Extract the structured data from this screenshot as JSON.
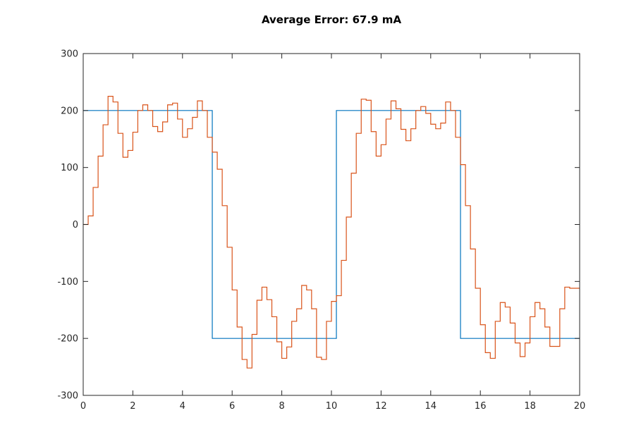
{
  "chart_data": {
    "type": "line",
    "step": true,
    "title": "Average Error:  67.9 mA",
    "xlabel": "",
    "ylabel": "",
    "xlim": [
      0,
      20
    ],
    "ylim": [
      -300,
      300
    ],
    "xticks": [
      0,
      2,
      4,
      6,
      8,
      10,
      12,
      14,
      16,
      18,
      20
    ],
    "yticks": [
      -300,
      -200,
      -100,
      0,
      100,
      200,
      300
    ],
    "grid": false,
    "box": true,
    "series": [
      {
        "color": "#0072BD",
        "x": [
          0,
          5.2,
          5.2,
          10.2,
          10.2,
          15.2,
          15.2,
          20
        ],
        "y": [
          200,
          200,
          -200,
          -200,
          200,
          200,
          -200,
          -200
        ]
      },
      {
        "color": "#D95319",
        "x": [
          0,
          0.2,
          0.4,
          0.6,
          0.8,
          1.0,
          1.2,
          1.4,
          1.6,
          1.8,
          2.0,
          2.2,
          2.4,
          2.6,
          2.8,
          3.0,
          3.2,
          3.4,
          3.6,
          3.8,
          4.0,
          4.2,
          4.4,
          4.6,
          4.8,
          5.0,
          5.2,
          5.4,
          5.6,
          5.8,
          6.0,
          6.2,
          6.4,
          6.6,
          6.8,
          7.0,
          7.2,
          7.4,
          7.6,
          7.8,
          8.0,
          8.2,
          8.4,
          8.6,
          8.8,
          9.0,
          9.2,
          9.4,
          9.6,
          9.8,
          10.0,
          10.2,
          10.4,
          10.6,
          10.8,
          11.0,
          11.2,
          11.4,
          11.6,
          11.8,
          12.0,
          12.2,
          12.4,
          12.6,
          12.8,
          13.0,
          13.2,
          13.4,
          13.6,
          13.8,
          14.0,
          14.2,
          14.4,
          14.6,
          14.8,
          15.0,
          15.2,
          15.4,
          15.6,
          15.8,
          16.0,
          16.2,
          16.4,
          16.6,
          16.8,
          17.0,
          17.2,
          17.4,
          17.6,
          17.8,
          18.0,
          18.2,
          18.4,
          18.6,
          18.8,
          19.0,
          19.2,
          19.4,
          19.6,
          19.8,
          20.0
        ],
        "y": [
          0,
          15,
          65,
          120,
          175,
          225,
          215,
          160,
          118,
          130,
          162,
          200,
          210,
          200,
          172,
          163,
          180,
          210,
          213,
          185,
          153,
          168,
          188,
          217,
          200,
          153,
          127,
          97,
          33,
          -40,
          -115,
          -180,
          -237,
          -252,
          -193,
          -133,
          -110,
          -132,
          -162,
          -206,
          -235,
          -215,
          -170,
          -148,
          -107,
          -115,
          -148,
          -233,
          -237,
          -170,
          -135,
          -125,
          -63,
          13,
          90,
          160,
          220,
          218,
          163,
          120,
          140,
          185,
          217,
          203,
          167,
          147,
          168,
          200,
          207,
          195,
          176,
          168,
          178,
          215,
          200,
          153,
          105,
          33,
          -43,
          -112,
          -176,
          -225,
          -235,
          -170,
          -137,
          -145,
          -173,
          -208,
          -232,
          -208,
          -162,
          -137,
          -148,
          -180,
          -214,
          -214,
          -148,
          -110,
          -112,
          -112,
          -112
        ]
      }
    ]
  }
}
